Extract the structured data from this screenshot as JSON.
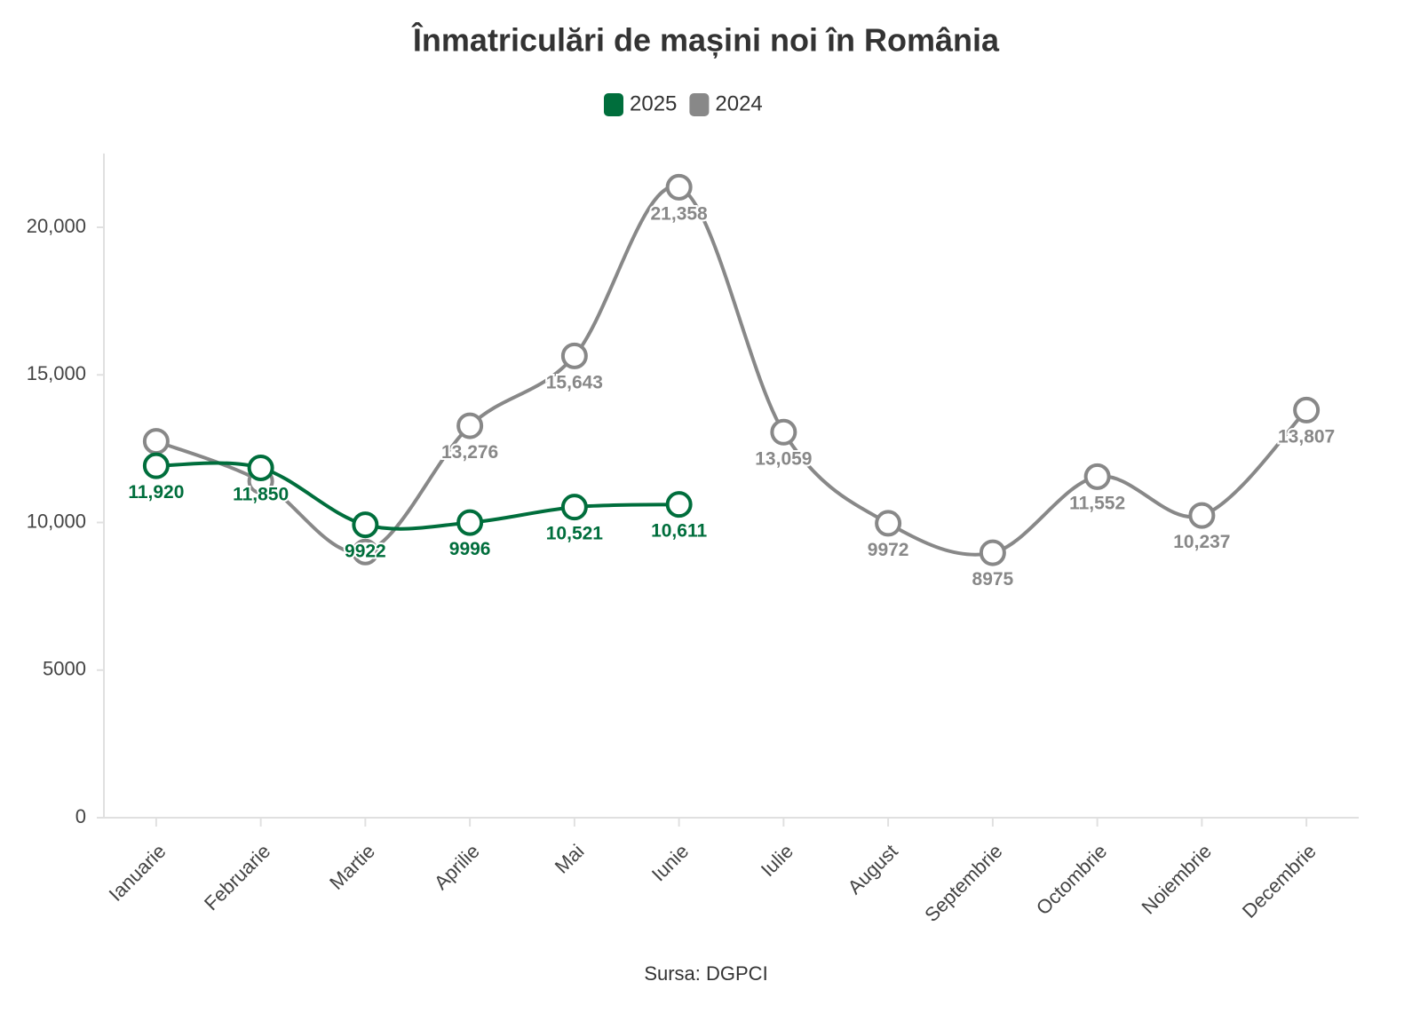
{
  "chart_data": {
    "type": "line",
    "title": "Înmatriculări de mașini noi în România",
    "source": "Sursa: DGPCI",
    "categories": [
      "Ianuarie",
      "Februarie",
      "Martie",
      "Aprilie",
      "Mai",
      "Iunie",
      "Iulie",
      "August",
      "Septembrie",
      "Octombrie",
      "Noiembrie",
      "Decembrie"
    ],
    "series": [
      {
        "name": "2025",
        "color": "#006e3c",
        "values": [
          11920,
          11850,
          9922,
          9996,
          10521,
          10611,
          null,
          null,
          null,
          null,
          null,
          null
        ],
        "value_labels": [
          "11,920",
          "11,850",
          "9922",
          "9996",
          "10,521",
          "10,611",
          null,
          null,
          null,
          null,
          null,
          null
        ]
      },
      {
        "name": "2024",
        "color": "#888888",
        "values": [
          12750,
          11400,
          9000,
          13276,
          15643,
          21358,
          13059,
          9972,
          8975,
          11552,
          10237,
          13807
        ],
        "value_labels": [
          null,
          null,
          null,
          "13,276",
          "15,643",
          "21,358",
          "13,059",
          "9972",
          "8975",
          "11,552",
          "10,237",
          "13,807"
        ]
      }
    ],
    "ylim": [
      0,
      22500
    ],
    "yticks": [
      0,
      5000,
      {
        "value": 10000,
        "label": "10,000"
      },
      {
        "value": 15000,
        "label": "15,000"
      },
      {
        "value": 20000,
        "label": "20,000"
      }
    ]
  }
}
